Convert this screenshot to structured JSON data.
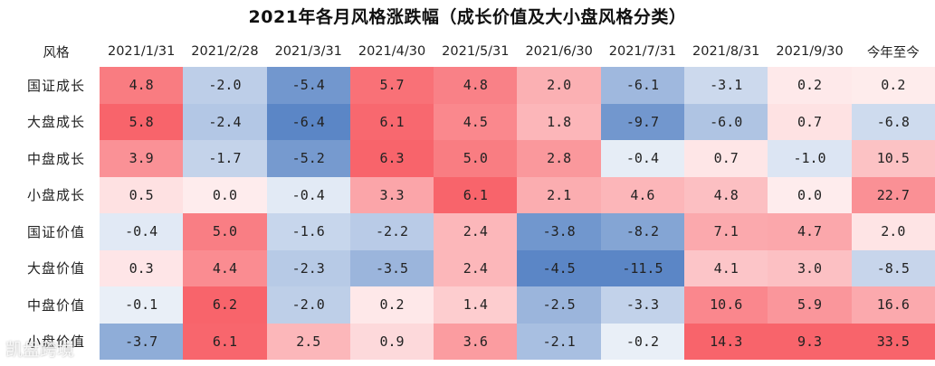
{
  "chart_data": {
    "type": "heatmap",
    "title": "2021年各月风格涨跌幅（成长价值及大小盘风格分类）",
    "corner_label": "风格",
    "columns": [
      "2021/1/31",
      "2021/2/28",
      "2021/3/31",
      "2021/4/30",
      "2021/5/31",
      "2021/6/30",
      "2021/7/31",
      "2021/8/31",
      "2021/9/30",
      "今年至今"
    ],
    "rows": [
      {
        "label": "国证成长",
        "values": [
          "4.8",
          "-2.0",
          "-5.4",
          "5.7",
          "4.8",
          "2.0",
          "-6.1",
          "-3.1",
          "0.2",
          "0.2"
        ]
      },
      {
        "label": "大盘成长",
        "values": [
          "5.8",
          "-2.4",
          "-6.4",
          "6.1",
          "4.5",
          "1.8",
          "-9.7",
          "-6.0",
          "0.7",
          "-6.8"
        ]
      },
      {
        "label": "中盘成长",
        "values": [
          "3.9",
          "-1.7",
          "-5.2",
          "6.3",
          "5.0",
          "2.8",
          "-0.4",
          "0.7",
          "-1.0",
          "10.5"
        ]
      },
      {
        "label": "小盘成长",
        "values": [
          "0.5",
          "0.0",
          "-0.4",
          "3.3",
          "6.1",
          "2.1",
          "4.6",
          "4.8",
          "0.0",
          "22.7"
        ]
      },
      {
        "label": "国证价值",
        "values": [
          "-0.4",
          "5.0",
          "-1.6",
          "-2.2",
          "2.4",
          "-3.8",
          "-8.2",
          "7.1",
          "4.7",
          "2.0"
        ]
      },
      {
        "label": "大盘价值",
        "values": [
          "0.3",
          "4.4",
          "-2.3",
          "-3.5",
          "2.4",
          "-4.5",
          "-11.5",
          "4.1",
          "3.0",
          "-8.5"
        ]
      },
      {
        "label": "中盘价值",
        "values": [
          "-0.1",
          "6.2",
          "-2.0",
          "0.2",
          "1.4",
          "-2.5",
          "-3.3",
          "10.6",
          "5.9",
          "16.6"
        ]
      },
      {
        "label": "小盘价值",
        "values": [
          "-3.7",
          "6.1",
          "2.5",
          "0.9",
          "3.6",
          "-2.1",
          "-0.2",
          "14.3",
          "9.3",
          "33.5"
        ]
      }
    ],
    "colors": {
      "positive": "#f8646b",
      "negative": "#5b86c6",
      "neutral": "#ffffff"
    },
    "watermark": "凯盘跨境"
  }
}
